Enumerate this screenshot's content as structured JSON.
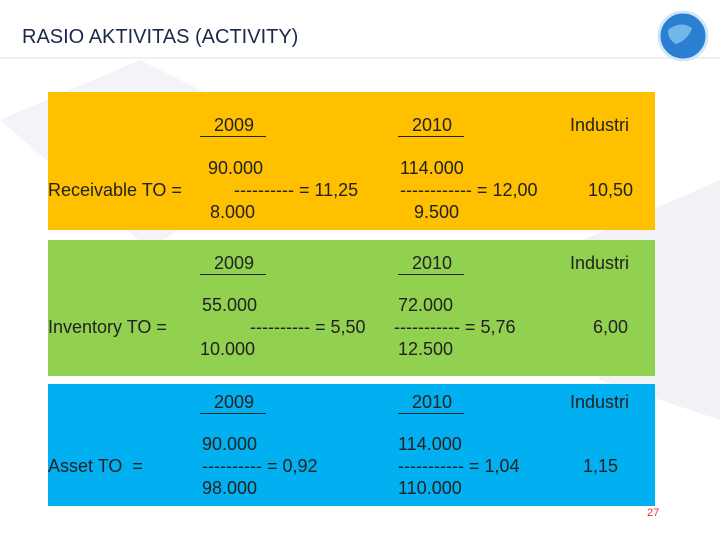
{
  "title": "RASIO AKTIVITAS (ACTIVITY)",
  "sections": [
    {
      "label": "Receivable TO =",
      "headers": [
        "2009",
        "2010",
        "Industri"
      ],
      "years": [
        {
          "numerator": "90.000",
          "fraction": "---------- = 11,25",
          "denominator": "8.000"
        },
        {
          "numerator": "114.000",
          "fraction": "------------ = 12,00",
          "denominator": "9.500"
        }
      ],
      "industri": "10,50"
    },
    {
      "label": "Inventory TO =",
      "headers": [
        "2009",
        "2010",
        "Industri"
      ],
      "years": [
        {
          "numerator": "55.000",
          "fraction": "---------- = 5,50",
          "denominator": "10.000"
        },
        {
          "numerator": "72.000",
          "fraction": "----------- = 5,76",
          "denominator": "12.500"
        }
      ],
      "industri": "6,00"
    },
    {
      "label": "Asset TO  =",
      "headers": [
        "2009",
        "2010",
        "Industri"
      ],
      "years": [
        {
          "numerator": "90.000",
          "fraction": "---------- = 0,92",
          "denominator": "98.000"
        },
        {
          "numerator": "114.000",
          "fraction": "----------- = 1,04",
          "denominator": "110.000"
        }
      ],
      "industri": "1,15"
    }
  ],
  "page_number": "27"
}
